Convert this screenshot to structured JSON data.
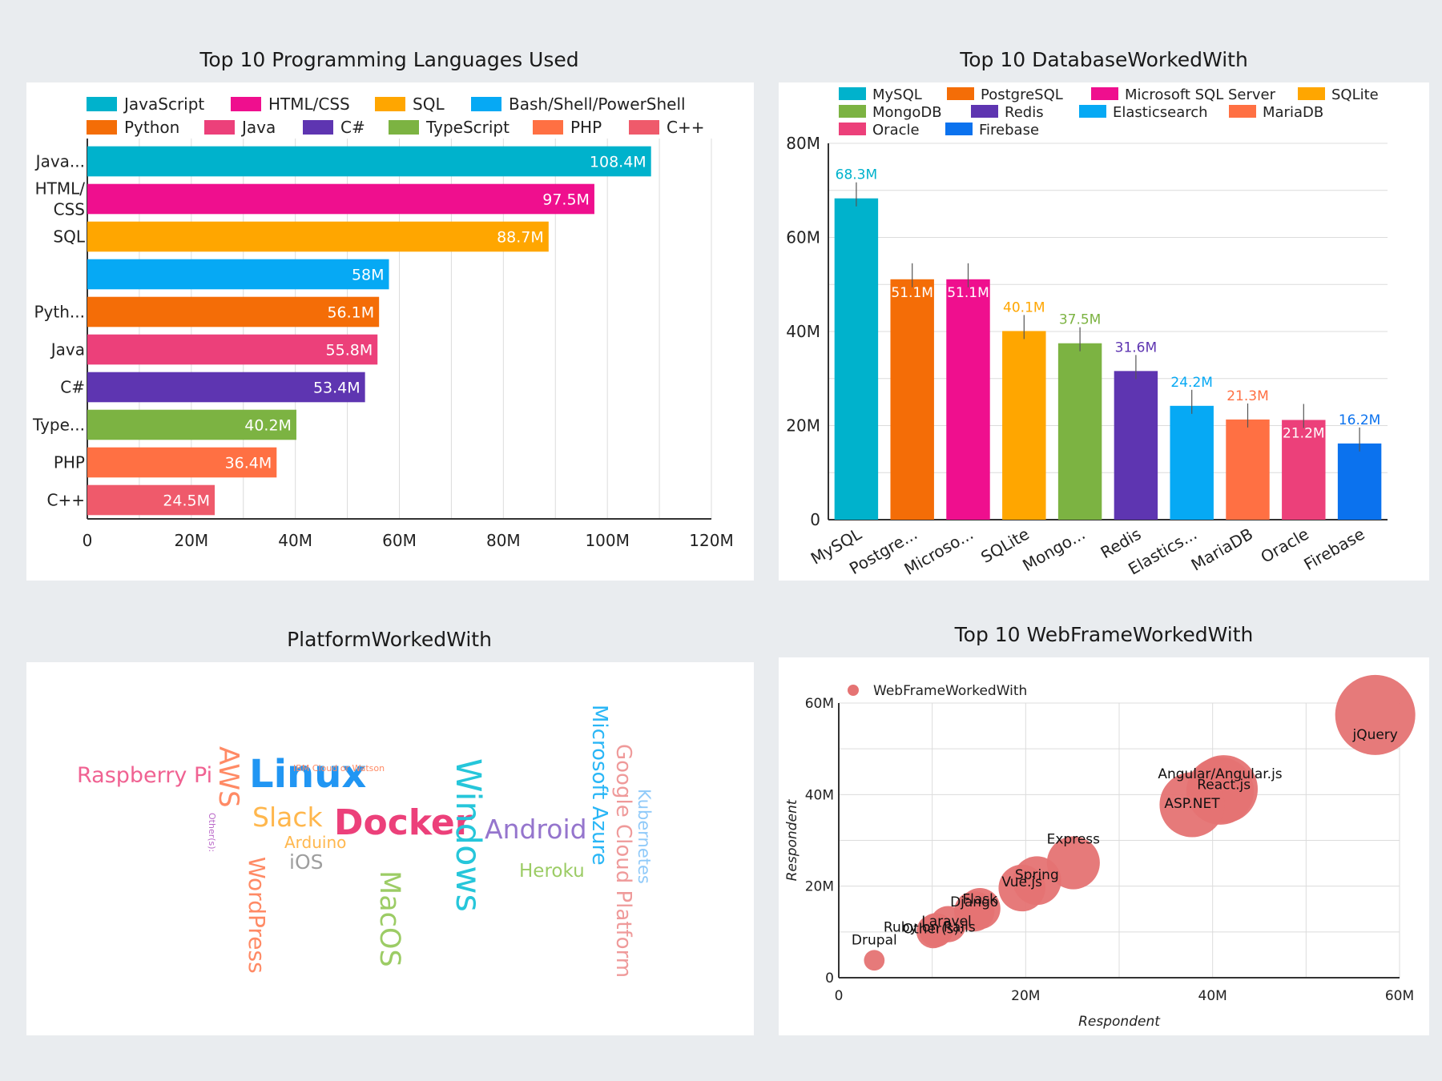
{
  "chart_data": [
    {
      "type": "bar",
      "orientation": "horizontal",
      "title": "Top 10 Programming Languages Used",
      "categories": [
        "JavaScript",
        "HTML/CSS",
        "SQL",
        "Bash/Shell/PowerShell",
        "Python",
        "Java",
        "C#",
        "TypeScript",
        "PHP",
        "C++"
      ],
      "tick_labels": [
        "Java...",
        "HTML/\nCSS",
        "SQL",
        "",
        "Pyth...",
        "Java",
        "C#",
        "Type...",
        "PHP",
        "C++"
      ],
      "values": [
        108.4,
        97.5,
        88.7,
        58,
        56.1,
        55.8,
        53.4,
        40.2,
        36.4,
        24.5
      ],
      "value_labels": [
        "108.4M",
        "97.5M",
        "88.7M",
        "58M",
        "56.1M",
        "55.8M",
        "53.4M",
        "40.2M",
        "36.4M",
        "24.5M"
      ],
      "colors": [
        "#00b2cc",
        "#ef0f8e",
        "#ffa600",
        "#06a9f4",
        "#f46d07",
        "#ec407a",
        "#5e35b1",
        "#7cb342",
        "#ff7043",
        "#ef5a6b"
      ],
      "xlim": [
        0,
        120
      ],
      "xticks": [
        "0",
        "20M",
        "40M",
        "60M",
        "80M",
        "100M",
        "120M"
      ],
      "legend": "top",
      "grid": "vertical"
    },
    {
      "type": "bar",
      "title": "Top 10 DatabaseWorkedWith",
      "categories": [
        "MySQL",
        "PostgreSQL",
        "Microsoft SQL Server",
        "SQLite",
        "MongoDB",
        "Redis",
        "Elasticsearch",
        "MariaDB",
        "Oracle",
        "Firebase"
      ],
      "tick_labels": [
        "MySQL",
        "Postgre...",
        "Microso...",
        "SQLite",
        "Mongo...",
        "Redis",
        "Elastics...",
        "MariaDB",
        "Oracle",
        "Firebase"
      ],
      "values": [
        68.3,
        51.1,
        51.1,
        40.1,
        37.5,
        31.6,
        24.2,
        21.3,
        21.2,
        16.2
      ],
      "value_labels": [
        "68.3M",
        "51.1M",
        "51.1M",
        "40.1M",
        "37.5M",
        "31.6M",
        "24.2M",
        "21.3M",
        "21.2M",
        "16.2M"
      ],
      "colors": [
        "#00b2cc",
        "#f46d07",
        "#ef0f8e",
        "#ffa600",
        "#7cb342",
        "#5e35b1",
        "#06a9f4",
        "#ff7043",
        "#ec407a",
        "#0b72ee"
      ],
      "ylim": [
        0,
        80
      ],
      "yticks": [
        "0",
        "20M",
        "40M",
        "60M",
        "80M"
      ],
      "legend": "top",
      "grid": "horizontal"
    },
    {
      "type": "wordcloud",
      "title": "PlatformWorkedWith",
      "words": [
        {
          "text": "Raspberry Pi",
          "color": "#f06292"
        },
        {
          "text": "AWS",
          "color": "#ff8a65"
        },
        {
          "text": "Linux",
          "color": "#2196f3"
        },
        {
          "text": "IBM Cloud or Watson",
          "color": "#ff8a65"
        },
        {
          "text": "Other(s):",
          "color": "#ba68c8"
        },
        {
          "text": "Slack",
          "color": "#ffb74d"
        },
        {
          "text": "Docker",
          "color": "#ec407a"
        },
        {
          "text": "Arduino",
          "color": "#ffb74d"
        },
        {
          "text": "iOS",
          "color": "#9e9e9e"
        },
        {
          "text": "WordPress",
          "color": "#ff8a65"
        },
        {
          "text": "MacOS",
          "color": "#9ccc65"
        },
        {
          "text": "Windows",
          "color": "#26c6da"
        },
        {
          "text": "Android",
          "color": "#9575cd"
        },
        {
          "text": "Heroku",
          "color": "#9ccc65"
        },
        {
          "text": "Microsoft Azure",
          "color": "#29b6f6"
        },
        {
          "text": "Google Cloud Platform",
          "color": "#ef9a9a"
        },
        {
          "text": "Kubernetes",
          "color": "#90caf9"
        }
      ]
    },
    {
      "type": "scatter",
      "title": "Top 10 WebFrameWorkedWith",
      "series_name": "WebFrameWorkedWith",
      "color": "#e57373",
      "xlabel": "Respondent",
      "ylabel": "Respondent",
      "xlim": [
        0,
        60
      ],
      "ylim": [
        0,
        60
      ],
      "xticks": [
        "0",
        "20M",
        "40M",
        "60M"
      ],
      "yticks": [
        "0",
        "20M",
        "40M",
        "60M"
      ],
      "points": [
        {
          "label": "jQuery",
          "x": 57.4,
          "y": 57.4
        },
        {
          "label": "React.js",
          "x": 41.2,
          "y": 41.2
        },
        {
          "label": "Angular/Angular.js",
          "x": 40.8,
          "y": 40.8
        },
        {
          "label": "ASP.NET",
          "x": 37.8,
          "y": 37.8
        },
        {
          "label": "Express",
          "x": 25.1,
          "y": 25.1
        },
        {
          "label": "Spring",
          "x": 21.2,
          "y": 21.2
        },
        {
          "label": "Vue.js",
          "x": 19.6,
          "y": 19.6
        },
        {
          "label": "Flask",
          "x": 15.1,
          "y": 15.1
        },
        {
          "label": "Django",
          "x": 14.5,
          "y": 14.5
        },
        {
          "label": "Laravel",
          "x": 11.7,
          "y": 11.7
        },
        {
          "label": "Ruby on Rails",
          "x": 10.4,
          "y": 10.4
        },
        {
          "label": "Other(s):",
          "x": 10.1,
          "y": 10.1
        },
        {
          "label": "Drupal",
          "x": 3.8,
          "y": 3.8
        }
      ],
      "legend": "top-left",
      "grid": true
    }
  ]
}
